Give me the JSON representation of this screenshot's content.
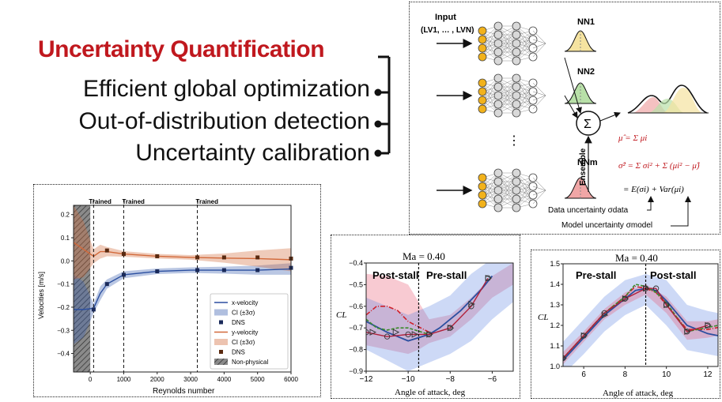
{
  "headings": {
    "main": "Uncertainty Quantification",
    "items": [
      "Efficient global optimization",
      "Out-of-distribution detection",
      "Uncertainty calibration"
    ]
  },
  "colors": {
    "accent_red": "#c0181e",
    "blue": "#3a5fb0",
    "orange": "#d2693a",
    "nn_yellow": "#f2b21b"
  },
  "ensemble": {
    "input_label": "Input",
    "input_vars": "(LV1, … , LVN)",
    "networks": [
      "NN1",
      "NN2",
      "NNm"
    ],
    "sum_symbol": "Σ",
    "ensemble_label": "Ensemble",
    "ellipsis": "⋮",
    "eq_mean": "μ̂ = Σ μi",
    "eq_var": "σ̂² = Σ σi² + Σ (μi² − μ̂)",
    "eq_decomp": "= E(σi) + Var(μi)",
    "data_uncertainty": "Data uncertainty σdata",
    "model_uncertainty": "Model uncertainty σmodel"
  },
  "velocity_plot": {
    "ylabel": "Velocities [m/s]",
    "xlabel": "Reynolds number",
    "trained_label": "Trained",
    "legend": [
      "x-velocity",
      "CI (±3σ)",
      "DNS",
      "y-velocity",
      "CI (±3σ)",
      "DNS",
      "Non-physical"
    ]
  },
  "cl_left": {
    "title": "Ma = 0.40",
    "ylabel": "CL",
    "xlabel": "Angle of attack, deg",
    "post_label": "Post-stall",
    "pre_label": "Pre-stall"
  },
  "cl_right": {
    "title": "Ma = 0.40",
    "ylabel": "CL",
    "xlabel": "Angle of attack, deg",
    "pre_label": "Pre-stall",
    "post_label": "Post-stall"
  },
  "chart_data": [
    {
      "type": "line",
      "xlabel": "Reynolds number",
      "ylabel": "Velocities [m/s]",
      "xlim": [
        -500,
        6000
      ],
      "ylim": [
        -0.48,
        0.24
      ],
      "xticks": [
        0,
        1000,
        2000,
        3000,
        4000,
        5000,
        6000
      ],
      "yticks": [
        -0.4,
        -0.3,
        -0.2,
        -0.1,
        0.0,
        0.1,
        0.2
      ],
      "xtick_labels": [
        "0",
        "1000",
        "2000",
        "3000",
        "4000",
        "5000",
        "6000"
      ],
      "ytick_labels": [
        "−0.4",
        "−0.3",
        "−0.2",
        "−0.1",
        "0.0",
        "0.1",
        "0.2"
      ],
      "trained_x": [
        100,
        1000,
        3200
      ],
      "nonphysical_range": [
        -500,
        0
      ],
      "legend_position": "lower-right",
      "series": [
        {
          "name": "x-velocity",
          "x": [
            -500,
            -200,
            100,
            300,
            500,
            1000,
            2000,
            3000,
            4000,
            5000,
            6000
          ],
          "y": [
            -0.21,
            -0.21,
            -0.205,
            -0.14,
            -0.1,
            -0.06,
            -0.045,
            -0.04,
            -0.04,
            -0.04,
            -0.035
          ]
        },
        {
          "name": "y-velocity",
          "x": [
            -500,
            -200,
            100,
            300,
            500,
            1000,
            2000,
            3000,
            4000,
            5000,
            6000
          ],
          "y": [
            0.08,
            0.05,
            0.02,
            0.04,
            0.04,
            0.03,
            0.02,
            0.015,
            0.012,
            0.01,
            0.005
          ]
        },
        {
          "name": "DNS",
          "x": [
            100,
            500,
            1000,
            2000,
            3200,
            4000,
            5000,
            6000
          ],
          "y": [
            -0.21,
            -0.1,
            -0.06,
            -0.045,
            -0.04,
            -0.04,
            -0.04,
            -0.03
          ]
        },
        {
          "name": "DNS",
          "x": [
            500,
            1000,
            2000,
            3200,
            4000,
            5000,
            6000
          ],
          "y": [
            0.045,
            0.03,
            0.02,
            0.015,
            0.015,
            0.015,
            0.01
          ]
        }
      ]
    },
    {
      "type": "line",
      "title": "Ma = 0.40",
      "xlabel": "Angle of attack, deg",
      "ylabel": "CL",
      "xlim": [
        -12,
        -5
      ],
      "ylim": [
        -0.9,
        -0.4
      ],
      "xticks": [
        -12,
        -10,
        -8,
        -6
      ],
      "yticks": [
        -0.9,
        -0.8,
        -0.7,
        -0.6,
        -0.5,
        -0.4
      ],
      "xtick_labels": [
        "−12",
        "−10",
        "−8",
        "−6"
      ],
      "ytick_labels": [
        "−0.9",
        "−0.8",
        "−0.7",
        "−0.6",
        "−0.5",
        "−0.4"
      ],
      "divider_x": -9.5,
      "series": [
        {
          "x": [
            -12,
            -11,
            -10,
            -9,
            -8.5,
            -7.5,
            -6.5,
            -6
          ],
          "y": [
            -0.67,
            -0.72,
            -0.76,
            -0.73,
            -0.7,
            -0.62,
            -0.52,
            -0.46
          ]
        },
        {
          "x": [
            -12,
            -11.5,
            -11,
            -10.5,
            -10,
            -9
          ],
          "y": [
            -0.64,
            -0.6,
            -0.6,
            -0.62,
            -0.67,
            -0.72
          ]
        },
        {
          "x": [
            -12,
            -11.5,
            -11,
            -10.5,
            -10,
            -9
          ],
          "y": [
            -0.66,
            -0.7,
            -0.71,
            -0.7,
            -0.7,
            -0.73
          ]
        },
        {
          "x": [
            -12,
            -11,
            -10,
            -9,
            -8,
            -7,
            -6.2
          ],
          "y": [
            -0.72,
            -0.74,
            -0.73,
            -0.73,
            -0.7,
            -0.6,
            -0.47
          ]
        },
        {
          "x": [
            -11.7,
            -10.6,
            -9.7,
            -9,
            -8,
            -7,
            -6.2
          ],
          "y": [
            -0.72,
            -0.72,
            -0.73,
            -0.73,
            -0.7,
            -0.59,
            -0.47
          ]
        }
      ]
    },
    {
      "type": "line",
      "title": "Ma = 0.40",
      "xlabel": "Angle of attack, deg",
      "ylabel": "CL",
      "xlim": [
        5,
        12.5
      ],
      "ylim": [
        1.0,
        1.5
      ],
      "xticks": [
        6,
        8,
        10,
        12
      ],
      "yticks": [
        1.0,
        1.1,
        1.2,
        1.3,
        1.4,
        1.5
      ],
      "xtick_labels": [
        "6",
        "8",
        "10",
        "12"
      ],
      "ytick_labels": [
        "1.0",
        "1.1",
        "1.2",
        "1.3",
        "1.4",
        "1.5"
      ],
      "divider_x": 9,
      "series": [
        {
          "x": [
            5,
            6,
            7,
            8,
            8.5,
            9,
            9.5,
            10,
            11,
            12,
            12.5
          ],
          "y": [
            1.03,
            1.14,
            1.25,
            1.33,
            1.37,
            1.38,
            1.37,
            1.32,
            1.2,
            1.16,
            1.15
          ]
        },
        {
          "x": [
            5,
            6,
            7,
            8,
            8.5,
            9,
            9.5,
            10,
            11,
            12,
            12.5
          ],
          "y": [
            1.04,
            1.15,
            1.26,
            1.34,
            1.39,
            1.38,
            1.36,
            1.3,
            1.18,
            1.18,
            1.19
          ]
        },
        {
          "x": [
            5,
            6,
            7,
            8,
            8.5,
            9,
            9.5,
            10,
            11,
            12,
            12.5
          ],
          "y": [
            1.04,
            1.15,
            1.26,
            1.34,
            1.4,
            1.39,
            1.36,
            1.31,
            1.17,
            1.19,
            1.2
          ]
        },
        {
          "x": [
            5,
            6,
            7,
            8,
            9,
            9.5,
            10,
            11,
            12
          ],
          "y": [
            1.04,
            1.15,
            1.26,
            1.33,
            1.38,
            1.38,
            1.3,
            1.17,
            1.2
          ]
        },
        {
          "x": [
            5,
            6,
            7,
            8,
            9,
            10,
            11,
            12
          ],
          "y": [
            1.04,
            1.15,
            1.25,
            1.33,
            1.38,
            1.3,
            1.17,
            1.2
          ]
        }
      ]
    }
  ]
}
